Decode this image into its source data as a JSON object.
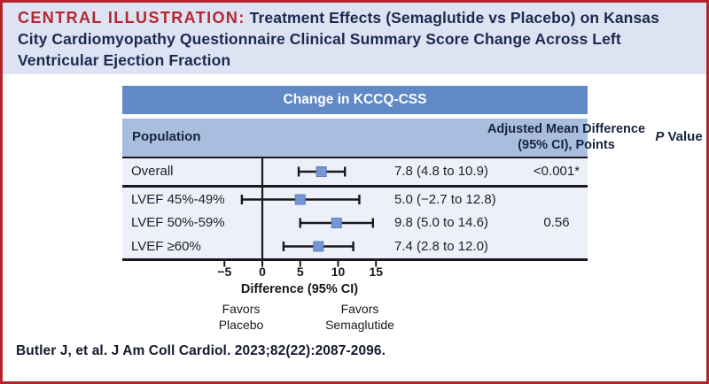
{
  "header": {
    "kicker": "CENTRAL ILLUSTRATION:",
    "title_rest": " Treatment Effects (Semaglutide vs Placebo) on Kansas City Cardiomyopathy Questionnaire Clinical Summary Score Change Across Left Ventricular Ejection Fraction"
  },
  "panel": {
    "title": "Change in KCCQ-CSS",
    "columns": {
      "population": "Population",
      "effect_line1": "Adjusted Mean Difference",
      "effect_line2": "(95% CI), Points",
      "p_italic": "P",
      "p_rest": " Value"
    }
  },
  "chart_data": {
    "type": "forest",
    "title": "Change in KCCQ-CSS",
    "xlabel": "Difference (95% CI)",
    "axis": {
      "min": -5,
      "max": 15,
      "ticks": [
        -5,
        0,
        5,
        10,
        15
      ],
      "zero_line": true
    },
    "rows": [
      {
        "label": "Overall",
        "estimate": 7.8,
        "ci_low": 4.8,
        "ci_high": 10.9,
        "text": "7.8 (4.8 to 10.9)",
        "p_value": "<0.001*"
      },
      {
        "label": "LVEF 45%-49%",
        "estimate": 5.0,
        "ci_low": -2.7,
        "ci_high": 12.8,
        "text": "5.0 (−2.7 to 12.8)",
        "p_value": ""
      },
      {
        "label": "LVEF 50%-59%",
        "estimate": 9.8,
        "ci_low": 5.0,
        "ci_high": 14.6,
        "text": "9.8 (5.0 to 14.6)",
        "p_value": "0.56"
      },
      {
        "label": "LVEF ≥60%",
        "estimate": 7.4,
        "ci_low": 2.8,
        "ci_high": 12.0,
        "text": "7.4 (2.8 to 12.0)",
        "p_value": ""
      }
    ],
    "favors": {
      "left": [
        "Favors",
        "Placebo"
      ],
      "right": [
        "Favors",
        "Semaglutide"
      ]
    }
  },
  "footer": {
    "citation": "Butler J, et al. J Am Coll Cardiol. 2023;82(22):2087-2096."
  },
  "colors": {
    "frame": "#b5242b",
    "band": "#dde3f2",
    "kicker_red": "#b42731",
    "navy": "#1b2a50",
    "bar_blue": "#6189c6",
    "head_blue": "#a9bedf",
    "row_bg": "#edf0f8",
    "marker_blue": "#7397d3",
    "line_black": "#17181c"
  }
}
